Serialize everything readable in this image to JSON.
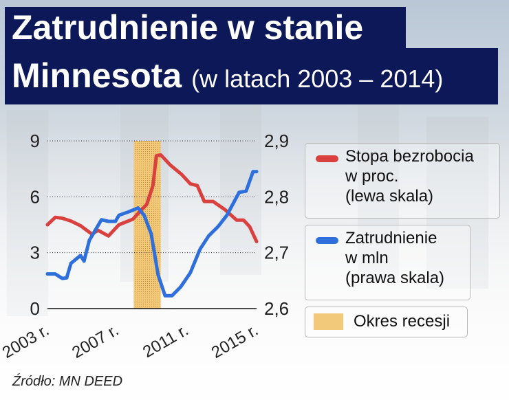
{
  "title": {
    "line1": "Zatrudnienie w stanie",
    "line2_main": "Minnesota",
    "line2_sub": "(w latach 2003 – 2014)"
  },
  "source": "Źródło: MN DEED",
  "chart_data": {
    "type": "line",
    "title": "Zatrudnienie w stanie Minnesota (w latach 2003 – 2014)",
    "x_ticks": [
      {
        "value": 2003,
        "label": "2003 r."
      },
      {
        "value": 2007,
        "label": "2007 r."
      },
      {
        "value": 2011,
        "label": "2011 r."
      },
      {
        "value": 2015,
        "label": "2015 r."
      }
    ],
    "xlim": [
      2003,
      2015
    ],
    "left_axis": {
      "ylim": [
        0,
        9
      ],
      "ticks": [
        {
          "value": 0,
          "label": "0"
        },
        {
          "value": 3,
          "label": "3"
        },
        {
          "value": 6,
          "label": "6"
        },
        {
          "value": 9,
          "label": "9"
        }
      ]
    },
    "right_axis": {
      "ylim": [
        2.6,
        2.9
      ],
      "ticks": [
        {
          "value": 2.6,
          "label": "2,6"
        },
        {
          "value": 2.7,
          "label": "2,7"
        },
        {
          "value": 2.8,
          "label": "2,8"
        },
        {
          "value": 2.9,
          "label": "2,9"
        }
      ]
    },
    "grid": "dotted horizontal",
    "recession": {
      "start": 2007.95,
      "end": 2009.5,
      "label": "Okres recesji",
      "color": "#f2c97a"
    },
    "series": [
      {
        "name": "Stopa bezrobocia",
        "legend": [
          "Stopa bezrobocia",
          "w proc.",
          "(lewa skala)"
        ],
        "axis": "left",
        "color": "#d9413f",
        "x": [
          2003.0,
          2003.45,
          2003.85,
          2004.35,
          2004.9,
          2005.55,
          2005.9,
          2006.5,
          2007.1,
          2007.9,
          2008.7,
          2009.05,
          2009.25,
          2009.5,
          2010.05,
          2010.7,
          2011.2,
          2011.6,
          2012.0,
          2012.5,
          2013.2,
          2013.85,
          2014.25,
          2014.6,
          2015.0
        ],
        "y": [
          4.5,
          4.9,
          4.85,
          4.7,
          4.45,
          4.0,
          4.2,
          3.9,
          4.5,
          4.8,
          5.6,
          6.6,
          8.2,
          8.25,
          7.7,
          7.2,
          6.7,
          6.6,
          5.75,
          5.75,
          5.3,
          4.75,
          4.75,
          4.4,
          3.6
        ]
      },
      {
        "name": "Zatrudnienie",
        "legend": [
          "Zatrudnienie",
          "w mln",
          "(prawa skala)"
        ],
        "axis": "right",
        "color": "#2f6fdc",
        "x": [
          2003.0,
          2003.45,
          2003.85,
          2004.1,
          2004.35,
          2004.9,
          2005.1,
          2005.4,
          2006.1,
          2006.5,
          2006.9,
          2007.1,
          2007.65,
          2008.2,
          2008.55,
          2008.95,
          2009.35,
          2009.75,
          2010.15,
          2010.65,
          2011.2,
          2011.75,
          2012.25,
          2012.8,
          2013.3,
          2014.0,
          2014.4,
          2014.8,
          2015.0
        ],
        "y": [
          2.662,
          2.662,
          2.654,
          2.655,
          2.681,
          2.695,
          2.685,
          2.722,
          2.759,
          2.756,
          2.756,
          2.767,
          2.773,
          2.78,
          2.767,
          2.734,
          2.66,
          2.623,
          2.623,
          2.639,
          2.664,
          2.706,
          2.73,
          2.747,
          2.767,
          2.808,
          2.81,
          2.845,
          2.845
        ]
      }
    ]
  }
}
